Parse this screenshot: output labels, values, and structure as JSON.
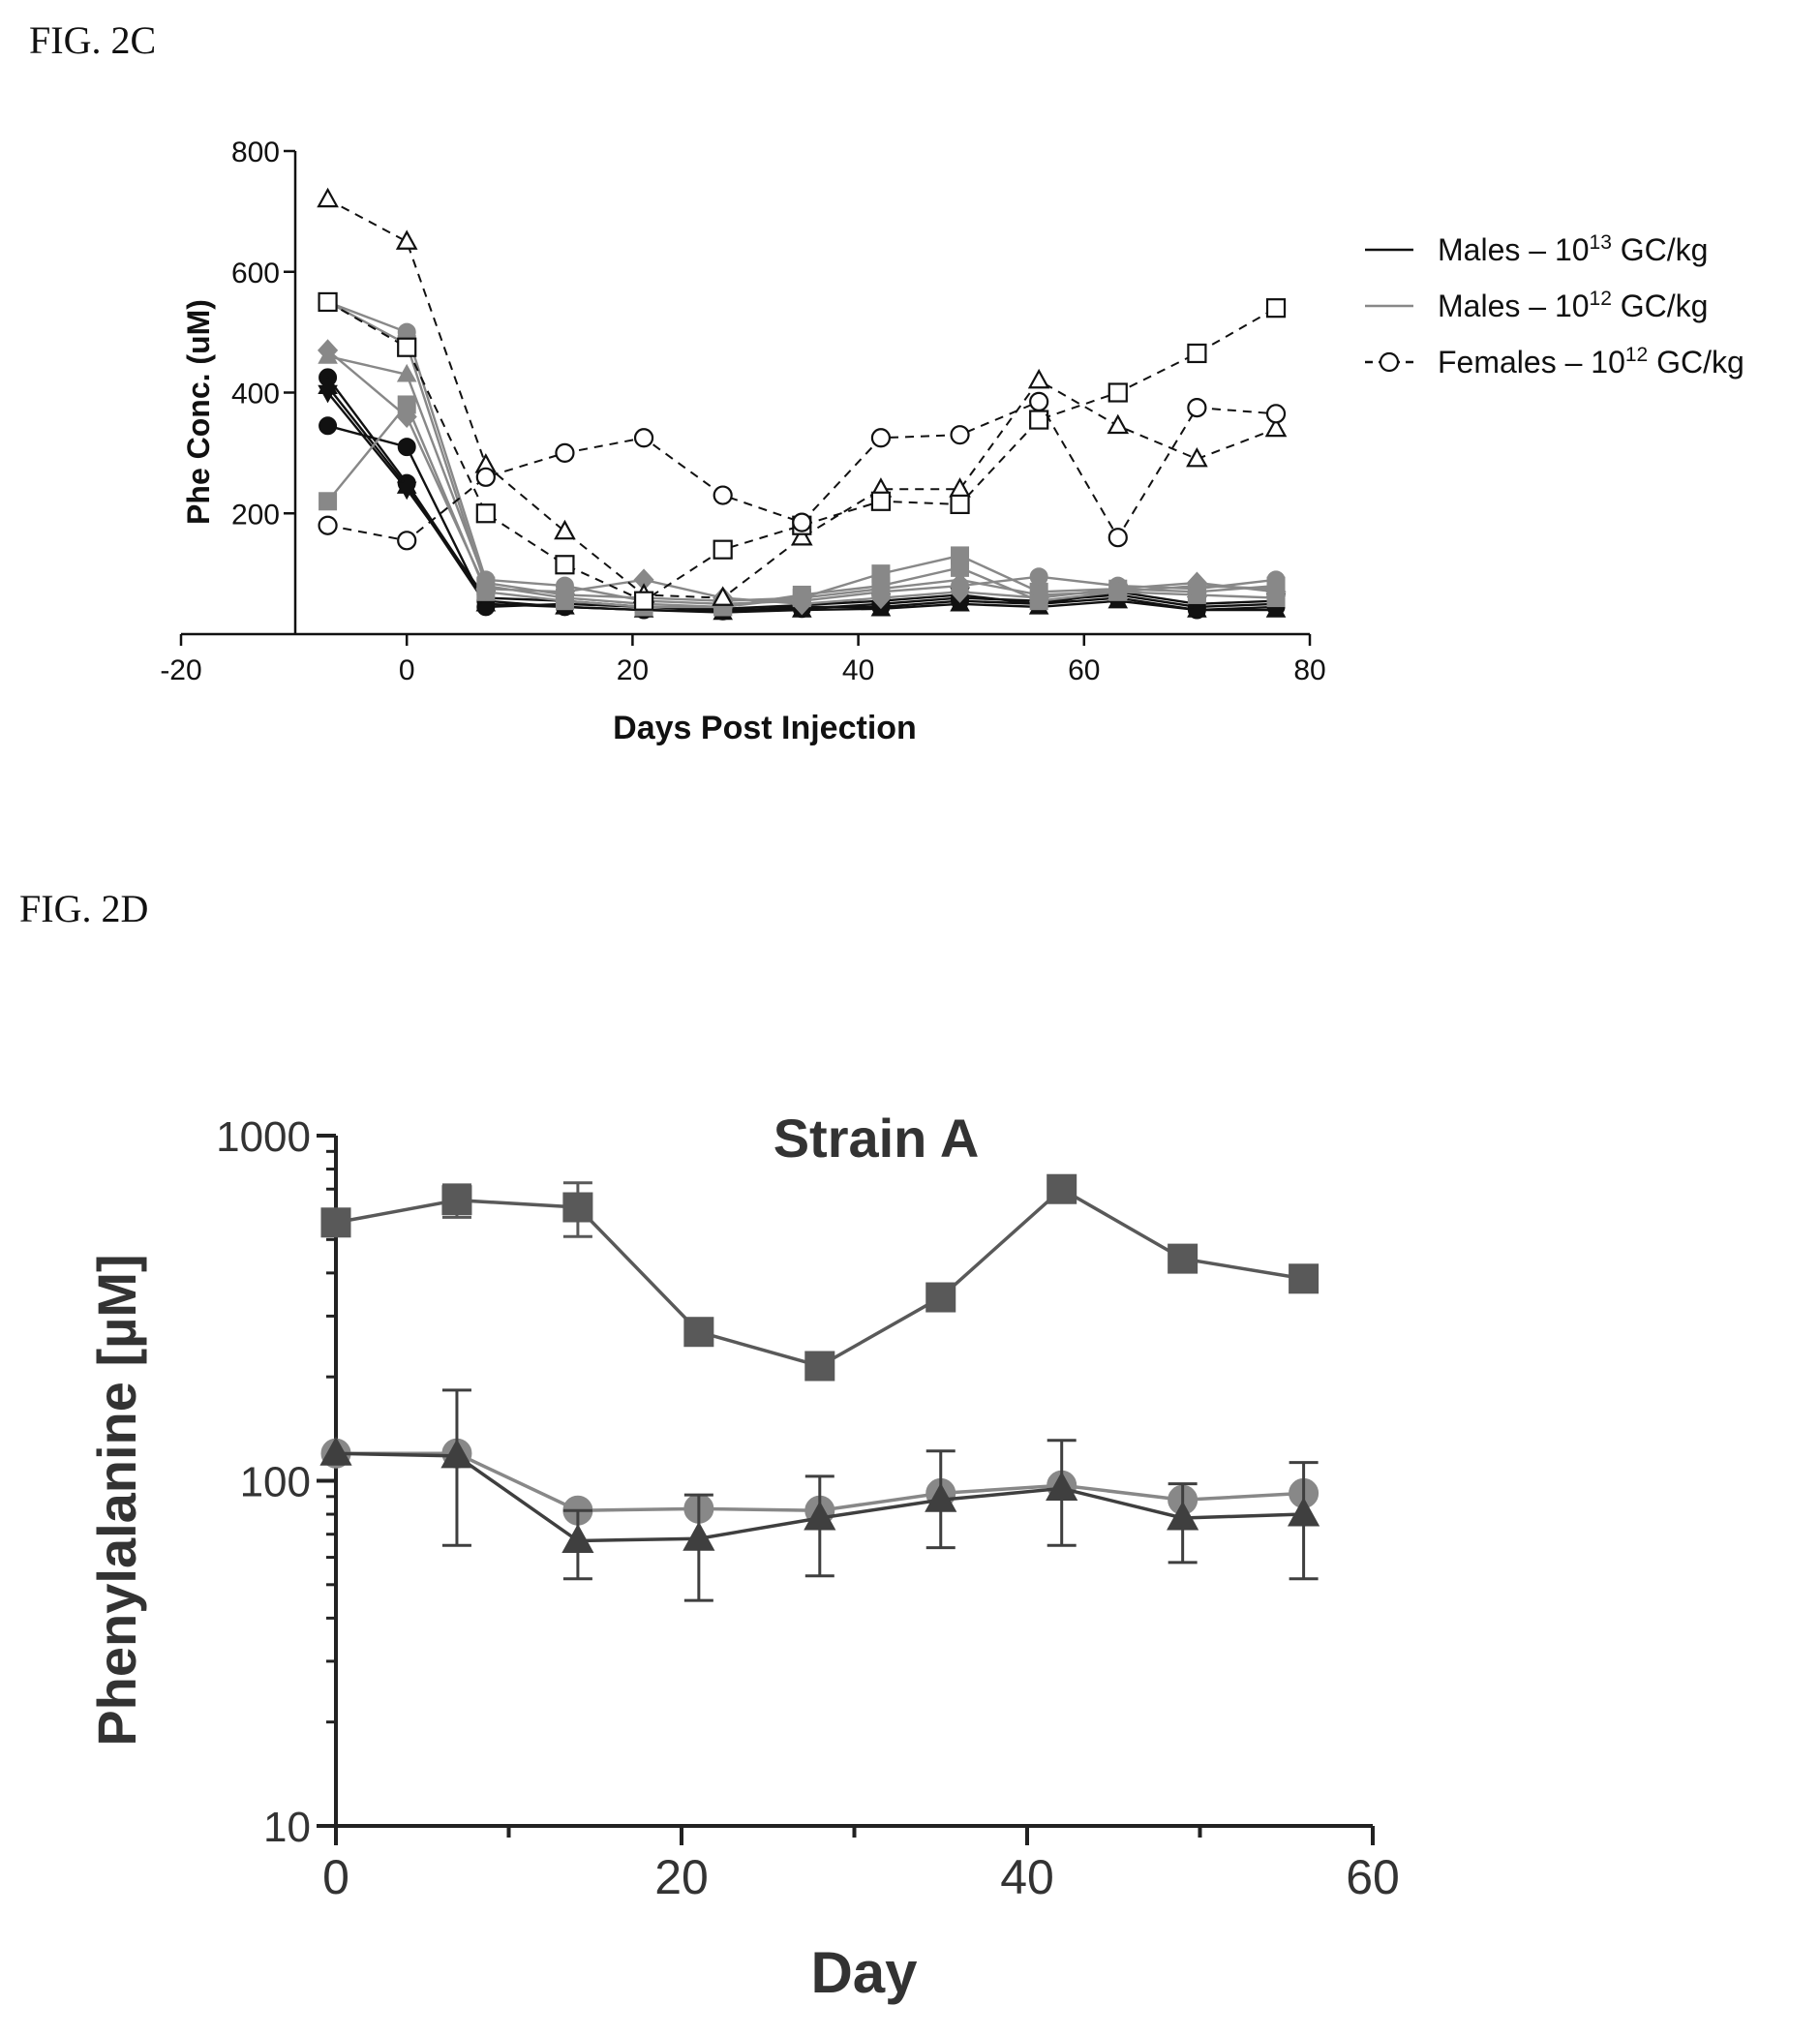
{
  "figures": {
    "fig2c_label": "FIG. 2C",
    "fig2d_label": "FIG. 2D"
  },
  "chart_data": [
    {
      "type": "line",
      "xlabel": "Days Post Injection",
      "ylabel": "Phe Conc. (uM)",
      "xlim": [
        -20,
        80
      ],
      "ylim": [
        0,
        800
      ],
      "xticks": [
        "-20",
        "0",
        "20",
        "40",
        "60",
        "80"
      ],
      "yticks": [
        "200",
        "400",
        "600",
        "800"
      ],
      "legend": {
        "placement": "right",
        "entries": [
          {
            "prefix": "Males – 10",
            "exp": "13",
            "suffix": " GC/kg",
            "marker": "filled-circle",
            "color": "#111111",
            "dashed": false
          },
          {
            "prefix": "Males – 10",
            "exp": "12",
            "suffix": " GC/kg",
            "marker": "filled-circle",
            "color": "#888888",
            "dashed": false
          },
          {
            "prefix": "Females – 10",
            "exp": "12",
            "suffix": " GC/kg",
            "marker": "open-circle",
            "color": "#111111",
            "dashed": true
          }
        ]
      },
      "x": [
        -7,
        0,
        7,
        14,
        21,
        28,
        35,
        42,
        49,
        56,
        63,
        70,
        77
      ],
      "series": [
        {
          "group": "males_13",
          "marker": "circle",
          "color": "#111111",
          "dashed": false,
          "values": [
            345,
            310,
            45,
            50,
            45,
            40,
            42,
            50,
            60,
            55,
            65,
            45,
            50
          ]
        },
        {
          "group": "males_13",
          "marker": "circle",
          "color": "#111111",
          "dashed": false,
          "values": [
            425,
            250,
            55,
            45,
            40,
            38,
            45,
            45,
            55,
            50,
            60,
            40,
            45
          ]
        },
        {
          "group": "males_13",
          "marker": "triangle-down",
          "color": "#111111",
          "dashed": false,
          "values": [
            400,
            240,
            60,
            55,
            45,
            42,
            48,
            55,
            65,
            50,
            70,
            50,
            55
          ]
        },
        {
          "group": "males_13",
          "marker": "triangle",
          "color": "#111111",
          "dashed": false,
          "values": [
            410,
            245,
            50,
            45,
            40,
            36,
            40,
            42,
            50,
            45,
            55,
            40,
            40
          ]
        },
        {
          "group": "males_12",
          "marker": "square",
          "color": "#888888",
          "dashed": false,
          "values": [
            550,
            480,
            80,
            60,
            50,
            45,
            60,
            100,
            130,
            70,
            75,
            70,
            80
          ]
        },
        {
          "group": "males_12",
          "marker": "square",
          "color": "#888888",
          "dashed": false,
          "values": [
            220,
            380,
            70,
            55,
            45,
            45,
            65,
            80,
            110,
            55,
            70,
            65,
            60
          ]
        },
        {
          "group": "males_12",
          "marker": "circle",
          "color": "#888888",
          "dashed": false,
          "values": [
            550,
            500,
            90,
            80,
            55,
            50,
            55,
            70,
            80,
            95,
            80,
            75,
            90
          ]
        },
        {
          "group": "males_12",
          "marker": "diamond",
          "color": "#888888",
          "dashed": false,
          "values": [
            470,
            360,
            75,
            70,
            90,
            60,
            50,
            60,
            70,
            60,
            75,
            85,
            70
          ]
        },
        {
          "group": "males_12",
          "marker": "triangle",
          "color": "#888888",
          "dashed": false,
          "values": [
            460,
            430,
            85,
            65,
            60,
            55,
            60,
            75,
            90,
            65,
            70,
            80,
            75
          ]
        },
        {
          "group": "females_12",
          "marker": "open-triangle",
          "color": "#111111",
          "dashed": true,
          "values": [
            720,
            650,
            280,
            170,
            65,
            60,
            160,
            240,
            240,
            420,
            345,
            290,
            340
          ]
        },
        {
          "group": "females_12",
          "marker": "open-square",
          "color": "#111111",
          "dashed": true,
          "values": [
            550,
            475,
            200,
            115,
            55,
            140,
            180,
            220,
            215,
            355,
            400,
            465,
            540
          ]
        },
        {
          "group": "females_12",
          "marker": "open-circle",
          "color": "#111111",
          "dashed": true,
          "values": [
            180,
            155,
            260,
            300,
            325,
            230,
            185,
            325,
            330,
            385,
            160,
            375,
            365
          ]
        }
      ]
    },
    {
      "type": "line",
      "title": "Strain A",
      "xlabel": "Day",
      "ylabel": "Phenylalanine [µM]",
      "yscale": "log",
      "xlim": [
        0,
        60
      ],
      "ylim": [
        10,
        1000
      ],
      "xticks": [
        "0",
        "20",
        "40",
        "60"
      ],
      "yticks": [
        "10",
        "100",
        "1000"
      ],
      "x": [
        0,
        7,
        14,
        21,
        28,
        35,
        42,
        49,
        56
      ],
      "series": [
        {
          "marker": "square",
          "color": "#595959",
          "values": [
            560,
            650,
            620,
            270,
            215,
            340,
            700,
            440,
            385
          ],
          "err_up": [
            0,
            70,
            110,
            0,
            0,
            0,
            0,
            0,
            0
          ],
          "err_down": [
            0,
            70,
            110,
            0,
            0,
            0,
            0,
            0,
            0
          ]
        },
        {
          "marker": "circle",
          "color": "#888888",
          "values": [
            120,
            120,
            82,
            83,
            82,
            92,
            97,
            88,
            92
          ],
          "err_up": [
            0,
            0,
            0,
            0,
            0,
            0,
            0,
            0,
            0
          ],
          "err_down": [
            0,
            0,
            0,
            0,
            0,
            0,
            0,
            0,
            0
          ]
        },
        {
          "marker": "triangle",
          "color": "#3f3f3f",
          "values": [
            120,
            118,
            67,
            68,
            78,
            88,
            95,
            78,
            80
          ],
          "err_up": [
            0,
            65,
            15,
            23,
            25,
            34,
            36,
            20,
            33
          ],
          "err_down": [
            0,
            53,
            15,
            23,
            25,
            24,
            30,
            20,
            28
          ]
        }
      ]
    }
  ]
}
